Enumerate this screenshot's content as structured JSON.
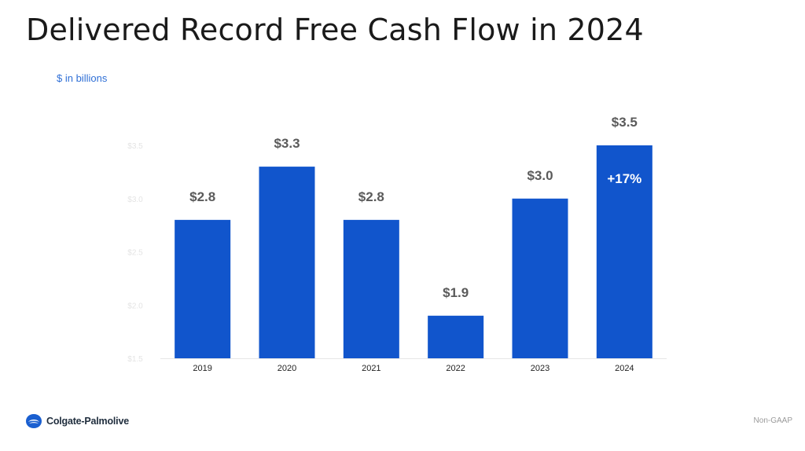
{
  "title": "Delivered Record Free Cash Flow in 2024",
  "units_label": "$ in billions",
  "chart_data": {
    "type": "bar",
    "categories": [
      "2019",
      "2020",
      "2021",
      "2022",
      "2023",
      "2024"
    ],
    "values": [
      2.8,
      3.3,
      2.8,
      1.9,
      3.0,
      3.5
    ],
    "value_labels": [
      "$2.8",
      "$3.3",
      "$2.8",
      "$1.9",
      "$3.0",
      "$3.5"
    ],
    "ytick_values": [
      1.5,
      2.0,
      2.5,
      3.0,
      3.5
    ],
    "ytick_labels": [
      "$1.5",
      "$2.0",
      "$2.5",
      "$3.0",
      "$3.5"
    ],
    "ylim": [
      1.5,
      3.5
    ],
    "bar_color": "#1155cc",
    "annotation": {
      "category": "2024",
      "text": "+17%"
    },
    "grid": false,
    "legend": "none"
  },
  "footer": {
    "brand": "Colgate-Palmolive",
    "brand_icon": "colgate-logo-icon",
    "note": "Non-GAAP"
  }
}
